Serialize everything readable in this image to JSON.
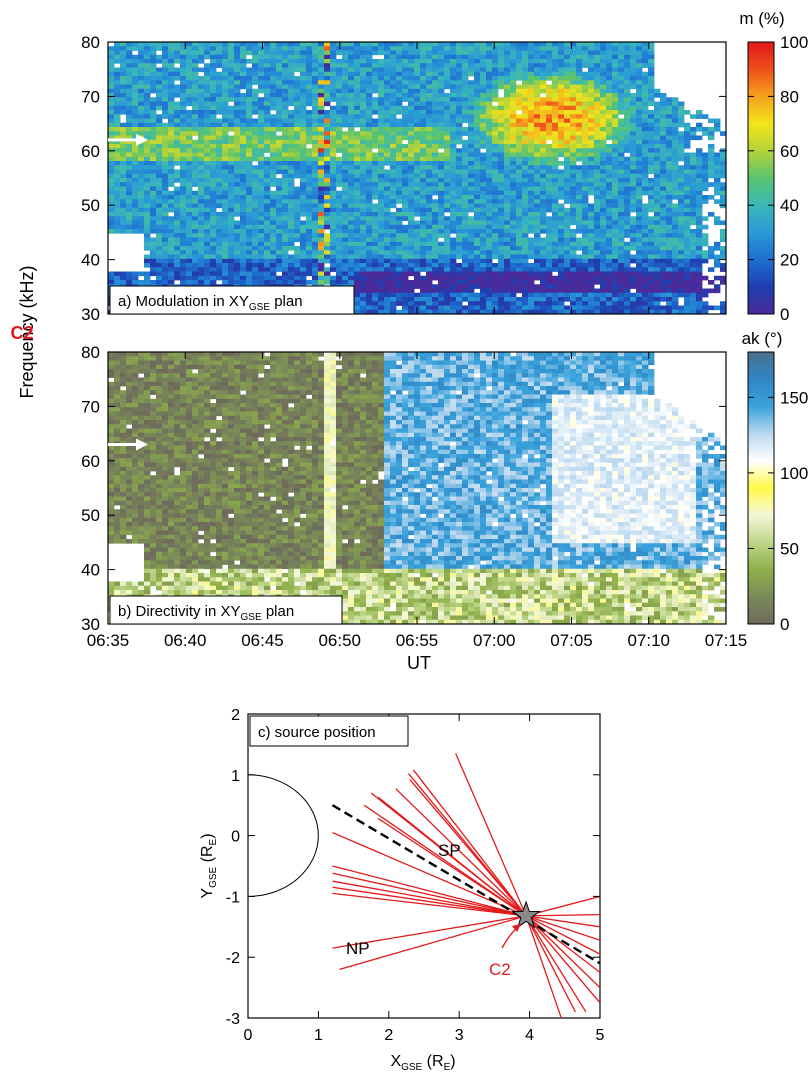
{
  "spacecraft_label": "C2",
  "chart_data": [
    {
      "type": "heatmap",
      "panel_label": "a) Modulation in XY",
      "panel_label_sub": "GSE",
      "panel_label_end": " plan",
      "xlabel": "",
      "ylabel": "Frequency (kHz)",
      "xlim": [
        "06:35",
        "07:15"
      ],
      "ylim": [
        30,
        80
      ],
      "yticks": [
        30,
        40,
        50,
        60,
        70,
        80
      ],
      "colorbar": {
        "label": "m (%)",
        "range": [
          0,
          100
        ],
        "ticks": [
          0,
          20,
          40,
          60,
          80,
          100
        ],
        "colors": [
          "#4b2a9a",
          "#1f3fb0",
          "#1e6fd0",
          "#2a9ad6",
          "#3bb7b8",
          "#59c46e",
          "#b5d33a",
          "#f2e51a",
          "#f6a11e",
          "#ee4f1c",
          "#e0181a"
        ]
      },
      "arrow_frequency_khz": 62,
      "features": [
        {
          "description_visible": "high modulation region",
          "time_range": [
            "06:56",
            "07:05"
          ],
          "frequency_range_khz": [
            58,
            75
          ],
          "value_pct": 75
        },
        {
          "description_visible": "high modulation band",
          "time_range": [
            "06:37",
            "06:55"
          ],
          "frequency_range_khz": [
            58,
            63
          ],
          "value_pct": 55
        }
      ]
    },
    {
      "type": "heatmap",
      "panel_label": "b) Directivity in XY",
      "panel_label_sub": "GSE",
      "panel_label_end": " plan",
      "xlabel": "UT",
      "ylabel": "Frequency (kHz)",
      "xlim": [
        "06:35",
        "07:15"
      ],
      "ylim": [
        30,
        80
      ],
      "xticks": [
        "06:35",
        "06:40",
        "06:45",
        "06:50",
        "06:55",
        "07:00",
        "07:05",
        "07:10",
        "07:15"
      ],
      "yticks": [
        30,
        40,
        50,
        60,
        70,
        80
      ],
      "colorbar": {
        "label": "ak (°)",
        "range": [
          0,
          180
        ],
        "ticks": [
          0,
          50,
          100,
          150
        ],
        "colors": [
          "#6e6a5c",
          "#7a8a58",
          "#8fb04a",
          "#bfd68a",
          "#f4f7d8",
          "#fff94a",
          "#ffffff",
          "#b9d7ee",
          "#3aa3dc",
          "#2f85c4",
          "#4a6f8c"
        ]
      },
      "arrow_frequency_khz": 63
    },
    {
      "type": "scatter",
      "panel_label": "c) source position",
      "xlabel": "X",
      "xlabel_sub": "GSE",
      "xlabel_unit": " (R",
      "xlabel_unit_sub": "E",
      "xlabel_unit_end": ")",
      "ylabel": "Y",
      "ylabel_sub": "GSE",
      "ylabel_unit": " (R",
      "ylabel_unit_sub": "E",
      "ylabel_unit_end": ")",
      "xlim": [
        0,
        5
      ],
      "ylim": [
        -3,
        2
      ],
      "xticks": [
        0,
        1,
        2,
        3,
        4,
        5
      ],
      "yticks": [
        -3,
        -2,
        -1,
        0,
        1,
        2
      ],
      "source_position": {
        "x": 3.95,
        "y": -1.32
      },
      "annotations": [
        "SP",
        "NP",
        "C2"
      ],
      "dashed_line": [
        [
          1.2,
          0.5
        ],
        [
          5.0,
          -2.1
        ]
      ],
      "ray_endpoints": [
        [
          2.35,
          1.08
        ],
        [
          2.28,
          1.02
        ],
        [
          2.3,
          0.92
        ],
        [
          2.1,
          0.77
        ],
        [
          1.75,
          0.7
        ],
        [
          1.85,
          0.63
        ],
        [
          1.65,
          0.5
        ],
        [
          1.85,
          0.28
        ],
        [
          2.95,
          1.35
        ],
        [
          1.2,
          0.05
        ],
        [
          1.2,
          -0.5
        ],
        [
          1.2,
          -0.62
        ],
        [
          1.2,
          -0.75
        ],
        [
          1.2,
          -0.85
        ],
        [
          1.2,
          -0.95
        ],
        [
          1.2,
          -1.85
        ],
        [
          1.3,
          -2.2
        ],
        [
          5.0,
          -1.0
        ],
        [
          5.0,
          -1.3
        ],
        [
          5.0,
          -1.5
        ],
        [
          5.0,
          -1.72
        ],
        [
          5.0,
          -1.95
        ],
        [
          5.0,
          -2.25
        ],
        [
          5.0,
          -2.5
        ],
        [
          5.0,
          -2.75
        ],
        [
          4.8,
          -2.9
        ],
        [
          4.65,
          -2.9
        ],
        [
          4.45,
          -3.0
        ]
      ]
    }
  ]
}
